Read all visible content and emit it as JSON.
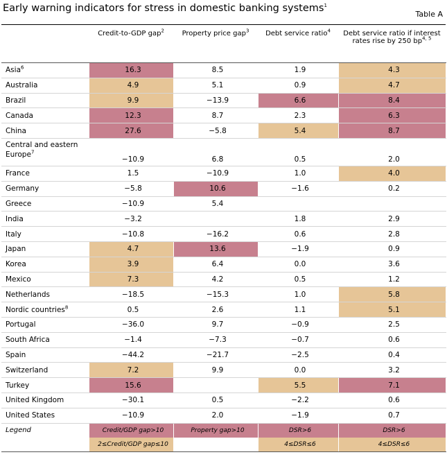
{
  "title": "Early warning indicators for stress in domestic banking systems",
  "title_note": "1",
  "table_tag": "Table A",
  "colors": {
    "high": "#c7808e",
    "medium": "#e6c597"
  },
  "columns": [
    {
      "label": "Credit-to-GDP gap",
      "note": "2"
    },
    {
      "label": "Property price gap",
      "note": "3"
    },
    {
      "label": "Debt service ratio",
      "note": "4"
    },
    {
      "label": "Debt service ratio if interest rates rise by 250 bp",
      "note": "4, 5"
    }
  ],
  "rows": [
    {
      "name": "Asia",
      "note": "6",
      "values": [
        "16.3",
        "8.5",
        "1.9",
        "4.3"
      ],
      "shade": [
        "red",
        "",
        "",
        "tan"
      ]
    },
    {
      "name": "Australia",
      "note": "",
      "values": [
        "4.9",
        "5.1",
        "0.9",
        "4.7"
      ],
      "shade": [
        "tan",
        "",
        "",
        "tan"
      ]
    },
    {
      "name": "Brazil",
      "note": "",
      "values": [
        "9.9",
        "−13.9",
        "6.6",
        "8.4"
      ],
      "shade": [
        "tan",
        "",
        "red",
        "red"
      ]
    },
    {
      "name": "Canada",
      "note": "",
      "values": [
        "12.3",
        "8.7",
        "2.3",
        "6.3"
      ],
      "shade": [
        "red",
        "",
        "",
        "red"
      ]
    },
    {
      "name": "China",
      "note": "",
      "values": [
        "27.6",
        "−5.8",
        "5.4",
        "8.7"
      ],
      "shade": [
        "red",
        "",
        "tan",
        "red"
      ]
    },
    {
      "name": "Central and eastern Europe",
      "note": "7",
      "values": [
        "−10.9",
        "6.8",
        "0.5",
        "2.0"
      ],
      "shade": [
        "",
        "",
        "",
        ""
      ]
    },
    {
      "name": "France",
      "note": "",
      "values": [
        "1.5",
        "−10.9",
        "1.0",
        "4.0"
      ],
      "shade": [
        "",
        "",
        "",
        "tan"
      ]
    },
    {
      "name": "Germany",
      "note": "",
      "values": [
        "−5.8",
        "10.6",
        "−1.6",
        "0.2"
      ],
      "shade": [
        "",
        "red",
        "",
        ""
      ]
    },
    {
      "name": "Greece",
      "note": "",
      "values": [
        "−10.9",
        "5.4",
        "",
        ""
      ],
      "shade": [
        "",
        "",
        "",
        ""
      ]
    },
    {
      "name": "India",
      "note": "",
      "values": [
        "−3.2",
        "",
        "1.8",
        "2.9"
      ],
      "shade": [
        "",
        "",
        "",
        ""
      ]
    },
    {
      "name": "Italy",
      "note": "",
      "values": [
        "−10.8",
        "−16.2",
        "0.6",
        "2.8"
      ],
      "shade": [
        "",
        "",
        "",
        ""
      ]
    },
    {
      "name": "Japan",
      "note": "",
      "values": [
        "4.7",
        "13.6",
        "−1.9",
        "0.9"
      ],
      "shade": [
        "tan",
        "red",
        "",
        ""
      ]
    },
    {
      "name": "Korea",
      "note": "",
      "values": [
        "3.9",
        "6.4",
        "0.0",
        "3.6"
      ],
      "shade": [
        "tan",
        "",
        "",
        ""
      ]
    },
    {
      "name": "Mexico",
      "note": "",
      "values": [
        "7.3",
        "4.2",
        "0.5",
        "1.2"
      ],
      "shade": [
        "tan",
        "",
        "",
        ""
      ]
    },
    {
      "name": "Netherlands",
      "note": "",
      "values": [
        "−18.5",
        "−15.3",
        "1.0",
        "5.8"
      ],
      "shade": [
        "",
        "",
        "",
        "tan"
      ]
    },
    {
      "name": "Nordic countries",
      "note": "8",
      "values": [
        "0.5",
        "2.6",
        "1.1",
        "5.1"
      ],
      "shade": [
        "",
        "",
        "",
        "tan"
      ]
    },
    {
      "name": "Portugal",
      "note": "",
      "values": [
        "−36.0",
        "9.7",
        "−0.9",
        "2.5"
      ],
      "shade": [
        "",
        "",
        "",
        ""
      ]
    },
    {
      "name": "South Africa",
      "note": "",
      "values": [
        "−1.4",
        "−7.3",
        "−0.7",
        "0.6"
      ],
      "shade": [
        "",
        "",
        "",
        ""
      ]
    },
    {
      "name": "Spain",
      "note": "",
      "values": [
        "−44.2",
        "−21.7",
        "−2.5",
        "0.4"
      ],
      "shade": [
        "",
        "",
        "",
        ""
      ]
    },
    {
      "name": "Switzerland",
      "note": "",
      "values": [
        "7.2",
        "9.9",
        "0.0",
        "3.2"
      ],
      "shade": [
        "tan",
        "",
        "",
        ""
      ]
    },
    {
      "name": "Turkey",
      "note": "",
      "values": [
        "15.6",
        "",
        "5.5",
        "7.1"
      ],
      "shade": [
        "red",
        "",
        "tan",
        "red"
      ]
    },
    {
      "name": "United Kingdom",
      "note": "",
      "values": [
        "−30.1",
        "0.5",
        "−2.2",
        "0.6"
      ],
      "shade": [
        "",
        "",
        "",
        ""
      ]
    },
    {
      "name": "United States",
      "note": "",
      "values": [
        "−10.9",
        "2.0",
        "−1.9",
        "0.7"
      ],
      "shade": [
        "",
        "",
        "",
        ""
      ]
    }
  ],
  "legend": {
    "label": "Legend",
    "row1": [
      "Credit/GDP gap>10",
      "Property gap>10",
      "DSR>6",
      "DSR>6"
    ],
    "row2": [
      "2≤Credit/GDP gap≤10",
      "",
      "4≤DSR≤6",
      "4≤DSR≤6"
    ]
  }
}
